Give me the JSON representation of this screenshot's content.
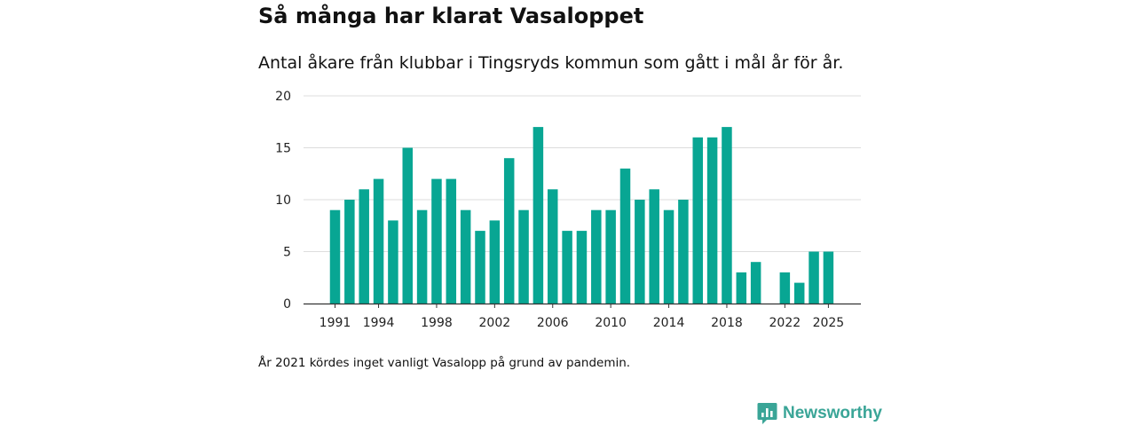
{
  "header": {
    "title": "Så många har klarat Vasaloppet",
    "subtitle": "Antal åkare från klubbar i Tingsryds kommun som gått i mål år för år."
  },
  "footer": {
    "note": "År 2021 kördes inget vanligt Vasalopp på grund av pandemin.",
    "brand_name": "Newsworthy"
  },
  "colors": {
    "bar": "#08a693",
    "grid": "#dddddd",
    "axis": "#333333",
    "brand": "#3aa597"
  },
  "chart_data": {
    "type": "bar",
    "title": "Så många har klarat Vasaloppet",
    "subtitle": "Antal åkare från klubbar i Tingsryds kommun som gått i mål år för år.",
    "xlabel": "",
    "ylabel": "",
    "ylim": [
      0,
      20
    ],
    "y_ticks": [
      0,
      5,
      10,
      15,
      20
    ],
    "grid": true,
    "x_tick_labels": [
      "1991",
      "1994",
      "1998",
      "2002",
      "2006",
      "2010",
      "2014",
      "2018",
      "2022",
      "2025"
    ],
    "categories": [
      1991,
      1992,
      1993,
      1994,
      1995,
      1996,
      1997,
      1998,
      1999,
      2000,
      2001,
      2002,
      2003,
      2004,
      2005,
      2006,
      2007,
      2008,
      2009,
      2010,
      2011,
      2012,
      2013,
      2014,
      2015,
      2016,
      2017,
      2018,
      2019,
      2020,
      2021,
      2022,
      2023,
      2024,
      2025
    ],
    "values": [
      9,
      10,
      11,
      12,
      8,
      15,
      9,
      12,
      12,
      9,
      7,
      8,
      14,
      9,
      17,
      11,
      7,
      7,
      9,
      9,
      13,
      10,
      11,
      9,
      10,
      16,
      16,
      17,
      3,
      4,
      null,
      3,
      2,
      5,
      5
    ]
  }
}
